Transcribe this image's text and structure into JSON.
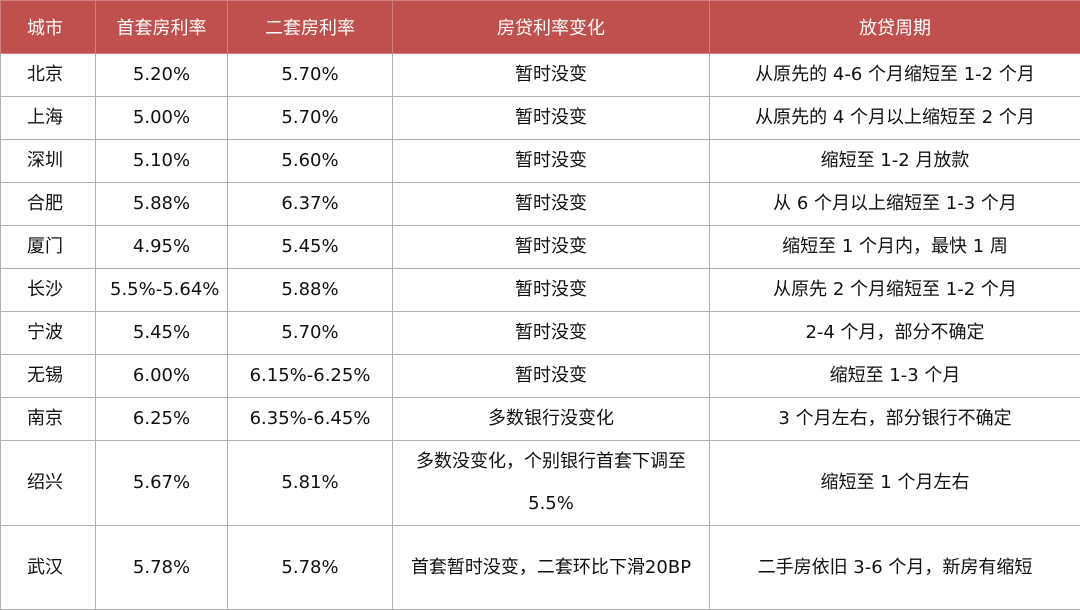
{
  "header": {
    "columns": [
      "城市",
      "首套房利率",
      "二套房利率",
      "房贷利率变化",
      "放贷周期"
    ]
  },
  "table": {
    "rows": [
      [
        "北京",
        "5.20%",
        "5.70%",
        "暂时没变",
        "从原先的 4-6 个月缩短至 1-2 个月"
      ],
      [
        "上海",
        "5.00%",
        "5.70%",
        "暂时没变",
        "从原先的 4 个月以上缩短至 2 个月"
      ],
      [
        "深圳",
        "5.10%",
        "5.60%",
        "暂时没变",
        "缩短至 1-2 月放款"
      ],
      [
        "合肥",
        "5.88%",
        "6.37%",
        "暂时没变",
        "从 6 个月以上缩短至 1-3 个月"
      ],
      [
        "厦门",
        "4.95%",
        "5.45%",
        "暂时没变",
        "缩短至 1 个月内，最快 1 周"
      ],
      [
        "长沙",
        "5.5%-5.64%",
        "5.88%",
        "暂时没变",
        "从原先 2 个月缩短至 1-2 个月"
      ],
      [
        "宁波",
        "5.45%",
        "5.70%",
        "暂时没变",
        "2-4 个月，部分不确定"
      ],
      [
        "无锡",
        "6.00%",
        "6.15%-6.25%",
        "暂时没变",
        "缩短至 1-3 个月"
      ],
      [
        "南京",
        "6.25%",
        "6.35%-6.45%",
        "多数银行没变化",
        "3 个月左右，部分银行不确定"
      ],
      [
        "绍兴",
        "5.67%",
        "5.81%",
        "多数没变化，个别银行首套下调至5.5%",
        "缩短至 1 个月左右"
      ],
      [
        "武汉",
        "5.78%",
        "5.78%",
        "首套暂时没变，二套环比下滑20BP",
        "二手房依旧 3-6 个月，新房有缩短"
      ]
    ]
  }
}
